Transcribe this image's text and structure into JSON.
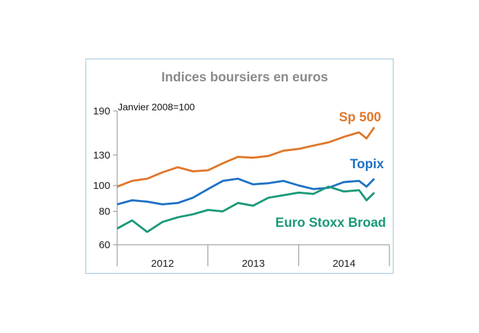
{
  "chart_data": {
    "type": "line",
    "title": "Indices boursiers en euros",
    "note": "Janvier 2008=100",
    "y_scale": "log",
    "ylim": [
      60,
      190
    ],
    "y_ticks": [
      60,
      80,
      100,
      130,
      190
    ],
    "x_categories": [
      "2012",
      "2013",
      "2014"
    ],
    "grid": false,
    "series": [
      {
        "name": "Sp 500",
        "color": "#e0772a",
        "x": [
          "2012-01",
          "2012-03",
          "2012-05",
          "2012-07",
          "2012-09",
          "2012-11",
          "2013-01",
          "2013-03",
          "2013-05",
          "2013-07",
          "2013-09",
          "2013-11",
          "2014-01",
          "2014-03",
          "2014-05",
          "2014-07",
          "2014-09",
          "2014-10",
          "2014-11"
        ],
        "values": [
          99,
          104,
          106,
          112,
          117,
          113,
          114,
          121,
          128,
          127,
          129,
          135,
          137,
          141,
          145,
          152,
          158,
          150,
          165
        ]
      },
      {
        "name": "Topix",
        "color": "#1f72c4",
        "x": [
          "2012-01",
          "2012-03",
          "2012-05",
          "2012-07",
          "2012-09",
          "2012-11",
          "2013-01",
          "2013-03",
          "2013-05",
          "2013-07",
          "2013-09",
          "2013-11",
          "2014-01",
          "2014-03",
          "2014-05",
          "2014-07",
          "2014-09",
          "2014-10",
          "2014-11"
        ],
        "values": [
          85,
          88,
          87,
          85,
          86,
          90,
          97,
          104,
          106,
          101,
          102,
          104,
          100,
          97,
          98,
          103,
          104,
          99,
          106
        ]
      },
      {
        "name": "Euro Stoxx Broad",
        "color": "#1a9a7a",
        "x": [
          "2012-01",
          "2012-03",
          "2012-05",
          "2012-07",
          "2012-09",
          "2012-11",
          "2013-01",
          "2013-03",
          "2013-05",
          "2013-07",
          "2013-09",
          "2013-11",
          "2014-01",
          "2014-03",
          "2014-05",
          "2014-07",
          "2014-09",
          "2014-10",
          "2014-11"
        ],
        "values": [
          69,
          74,
          67,
          73,
          76,
          78,
          81,
          80,
          86,
          84,
          90,
          92,
          94,
          93,
          99,
          95,
          96,
          88,
          94
        ]
      }
    ]
  }
}
